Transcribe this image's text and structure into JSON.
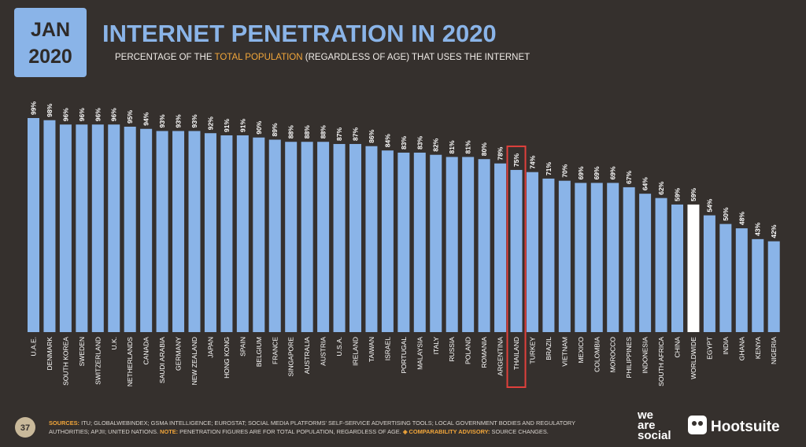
{
  "header": {
    "month": "JAN",
    "year": "2020",
    "title": "INTERNET PENETRATION IN 2020",
    "subtitle": [
      "PERCENTAGE OF THE ",
      "TOTAL POPULATION",
      " (REGARDLESS OF AGE) THAT USES THE INTERNET"
    ]
  },
  "chart_data": {
    "type": "bar",
    "categories": [
      "U.A.E.",
      "DENMARK",
      "SOUTH KOREA",
      "SWEDEN",
      "SWITZERLAND",
      "U.K.",
      "NETHERLANDS",
      "CANADA",
      "SAUDI ARABIA",
      "GERMANY",
      "NEW ZEALAND",
      "JAPAN",
      "HONG KONG",
      "SPAIN",
      "BELGIUM",
      "FRANCE",
      "SINGAPORE",
      "AUSTRALIA",
      "AUSTRIA",
      "U.S.A.",
      "IRELAND",
      "TAIWAN",
      "ISRAEL",
      "PORTUGAL",
      "MALAYSIA",
      "ITALY",
      "RUSSIA",
      "POLAND",
      "ROMANIA",
      "ARGENTINA",
      "THAILAND",
      "TURKEY",
      "BRAZIL",
      "VIETNAM",
      "MEXICO",
      "COLOMBIA",
      "MOROCCO",
      "PHILIPPINES",
      "INDONESIA",
      "SOUTH AFRICA",
      "CHINA",
      "WORLDWIDE",
      "EGYPT",
      "INDIA",
      "GHANA",
      "KENYA",
      "NIGERIA"
    ],
    "values": [
      99,
      98,
      96,
      96,
      96,
      96,
      95,
      94,
      93,
      93,
      93,
      92,
      91,
      91,
      90,
      89,
      88,
      88,
      88,
      87,
      87,
      86,
      84,
      83,
      83,
      82,
      81,
      81,
      80,
      78,
      75,
      74,
      71,
      70,
      69,
      69,
      69,
      67,
      64,
      62,
      59,
      59,
      54,
      50,
      48,
      43,
      42
    ],
    "value_labels": [
      "99%",
      "98%",
      "96%",
      "96%",
      "96%",
      "96%",
      "95%",
      "94%",
      "93%",
      "93%",
      "93%",
      "92%",
      "91%",
      "91%",
      "90%",
      "89%",
      "88%",
      "88%",
      "88%",
      "87%",
      "87%",
      "86%",
      "84%",
      "83%",
      "83%",
      "82%",
      "81%",
      "81%",
      "80%",
      "78%",
      "75%",
      "74%",
      "71%",
      "70%",
      "69%",
      "69%",
      "69%",
      "67%",
      "64%",
      "62%",
      "59%",
      "59%",
      "54%",
      "50%",
      "48%",
      "43%",
      "42%"
    ],
    "color": "#8ab4e8",
    "accent_index": 41,
    "accent_color": "#ffffff",
    "box_index": 30,
    "box_color": "#e0403c"
  },
  "footer": {
    "page": "37",
    "sources_label": "SOURCES:",
    "sources_1": " ITU; GLOBALWEBINDEX; GSMA INTELLIGENCE; EUROSTAT; SOCIAL MEDIA PLATFORMS' SELF-SERVICE ADVERTISING TOOLS; LOCAL GOVERNMENT BODIES AND REGULATORY",
    "sources_2": "AUTHORITIES; APJII; UNITED NATIONS. ",
    "note_label": "NOTE:",
    "note": " PENETRATION FIGURES ARE FOR TOTAL POPULATION, REGARDLESS OF AGE. ",
    "advisory_label": "◈ COMPARABILITY ADVISORY:",
    "advisory": " SOURCE CHANGES.",
    "logo_1": [
      "we",
      "are",
      "social"
    ],
    "logo_2": "Hootsuite"
  }
}
